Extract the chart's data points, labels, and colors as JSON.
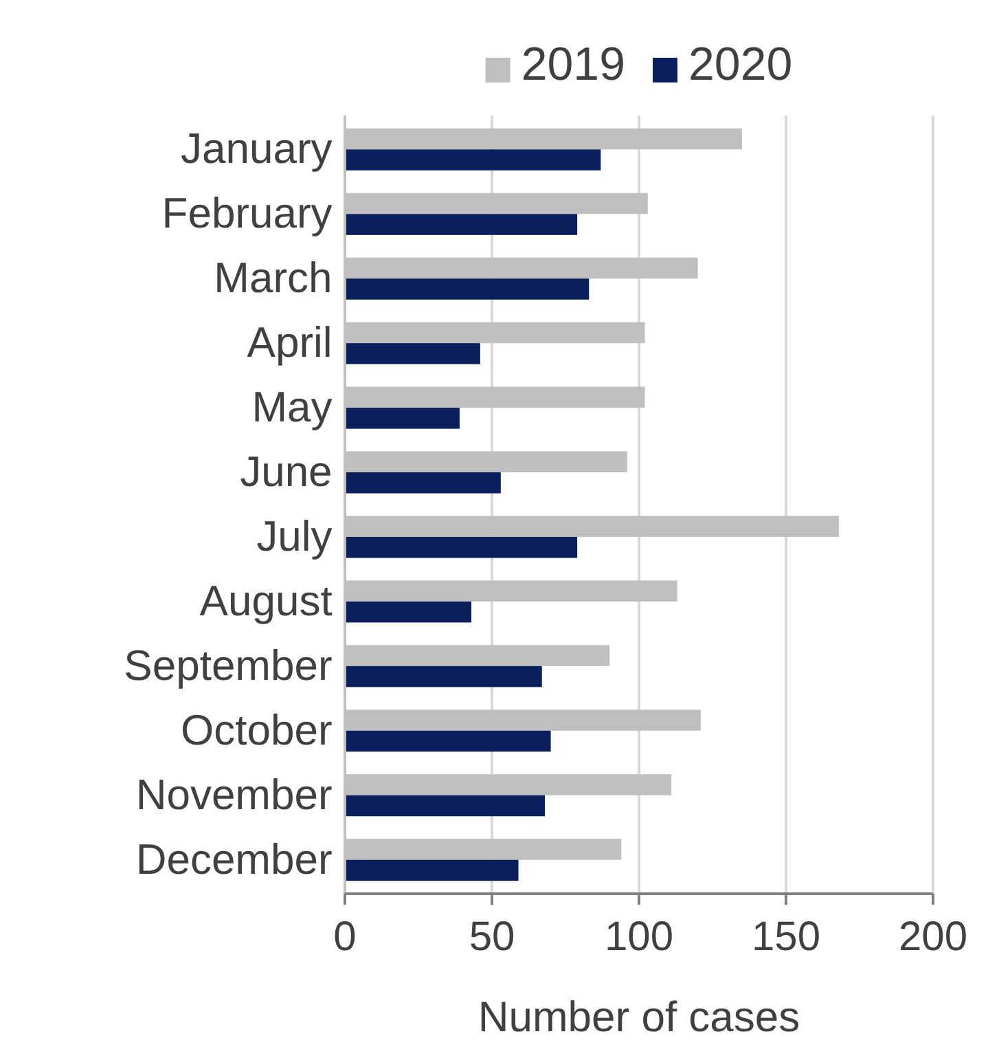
{
  "chart_data": {
    "type": "bar",
    "orientation": "horizontal",
    "xlabel": "Number of cases",
    "categories": [
      "January",
      "February",
      "March",
      "April",
      "May",
      "June",
      "July",
      "August",
      "September",
      "October",
      "November",
      "December"
    ],
    "series": [
      {
        "name": "2019",
        "color": "#bfbfbf",
        "values": [
          135,
          103,
          120,
          102,
          102,
          96,
          168,
          113,
          90,
          121,
          111,
          94
        ]
      },
      {
        "name": "2020",
        "color": "#0a1f5c",
        "values": [
          87,
          79,
          83,
          46,
          39,
          53,
          79,
          43,
          67,
          70,
          68,
          59
        ]
      }
    ],
    "xlim": [
      0,
      200
    ],
    "xticks": [
      0,
      50,
      100,
      150,
      200
    ],
    "grid": "x",
    "legend": "top"
  }
}
